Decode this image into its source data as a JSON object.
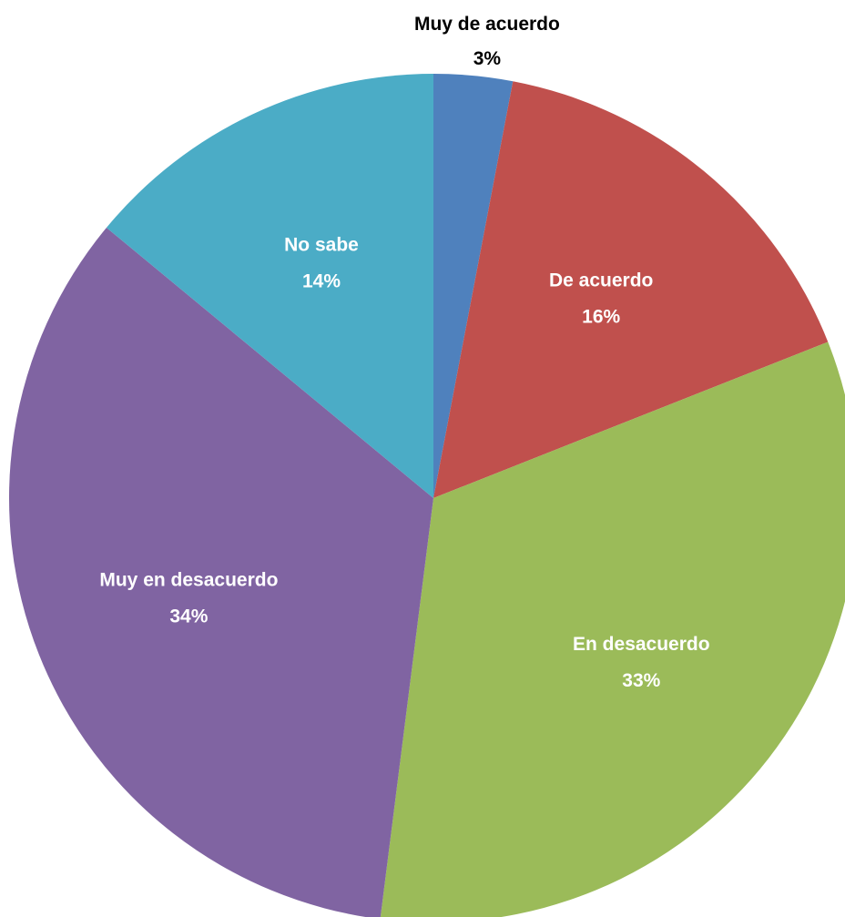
{
  "chart_data": {
    "type": "pie",
    "title": "",
    "start_angle_deg": 0,
    "direction": "clockwise",
    "slices": [
      {
        "label": "Muy de acuerdo",
        "value": 3,
        "value_label": "3%",
        "color": "#4F81BD",
        "label_color": "#000000",
        "label_placement": "outside"
      },
      {
        "label": "De acuerdo",
        "value": 16,
        "value_label": "16%",
        "color": "#C0504D",
        "label_color": "#FFFFFF",
        "label_placement": "inside"
      },
      {
        "label": "En desacuerdo",
        "value": 33,
        "value_label": "33%",
        "color": "#9BBB59",
        "label_color": "#FFFFFF",
        "label_placement": "inside"
      },
      {
        "label": "Muy en desacuerdo",
        "value": 34,
        "value_label": "34%",
        "color": "#8064A2",
        "label_color": "#FFFFFF",
        "label_placement": "inside"
      },
      {
        "label": "No sabe",
        "value": 14,
        "value_label": "14%",
        "color": "#4BACC6",
        "label_color": "#FFFFFF",
        "label_placement": "inside"
      }
    ]
  }
}
